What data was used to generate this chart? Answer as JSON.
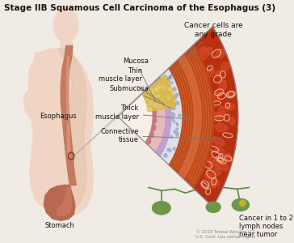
{
  "title": "Stage IIB Squamous Cell Carcinoma of the Esophagus (3)",
  "title_fontsize": 7.5,
  "title_fontweight": "bold",
  "bg_color": "#f0ebe4",
  "body_skin_color": "#f0d5c5",
  "body_shadow_color": "#ddbba0",
  "esophagus_color": "#c47a60",
  "stomach_color": "#b86850",
  "label_esophagus": "Esophagus",
  "label_stomach": "Stomach",
  "label_mucosa": "Mucosa",
  "label_thin_muscle": "Thin\nmuscle layer",
  "label_submucosa": "Submucosa",
  "label_thick_muscle": "Thick\nmuscle layer",
  "label_connective": "Connective\ntissue",
  "label_cancer_grade": "Cancer cells are\nany grade",
  "label_lymph": "Cancer in 1 to 2\nlymph nodes\nnear tumor",
  "copyright": "© 2018 Terese Winslow LLC\nU.S. Govt. has certain rights",
  "mucosa_color": "#e8b8bc",
  "mucosa_bump_color": "#c87880",
  "thin_muscle_color": "#c0a0cc",
  "submucosa_color": "#dce0ec",
  "thick_muscle_color": "#c04818",
  "thick_muscle_stripe": "#d06030",
  "connective_color": "#b83010",
  "connective_cell_color": "#cc4020",
  "cancer_color": "#d8b850",
  "cancer_light": "#e8d080",
  "lymph_node_color": "#6a9848",
  "lymph_node_cancer_color": "#c8b030",
  "font_color": "#1a1010",
  "line_color": "#777777"
}
